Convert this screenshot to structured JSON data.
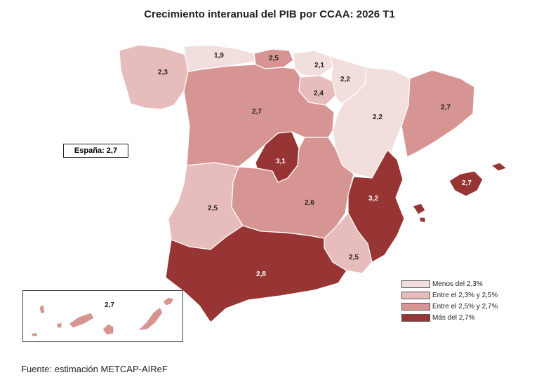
{
  "title": "Crecimiento interanual del PIB por CCAA: 2026 T1",
  "espana": "España: 2,7",
  "source": "Fuente: estimación METCAP-AIReF",
  "colors": {
    "lt23": "#f3dede",
    "r23_25": "#e7bcbc",
    "r25_27": "#d69592",
    "gt27": "#973434"
  },
  "legend": [
    {
      "label": "Menos del 2,3%",
      "color": "#f3dede"
    },
    {
      "label": "Entre el 2,3% y 2,5%",
      "color": "#e7bcbc"
    },
    {
      "label": "Entre el 2,5% y 2,7%",
      "color": "#d69592"
    },
    {
      "label": "Más del 2,7%",
      "color": "#973434"
    }
  ],
  "regions": {
    "galicia": "2,3",
    "asturias": "1,9",
    "cantabria": "2,5",
    "pais_vasco": "2,1",
    "navarra": "2,2",
    "rioja": "2,4",
    "aragon": "2,2",
    "cataluna": "2,7",
    "castilla_leon": "2,7",
    "madrid": "3,1",
    "castilla_mancha": "2,6",
    "valencia": "3,2",
    "baleares": "2,7",
    "extremadura": "2,5",
    "andalucia": "2,8",
    "murcia": "2,5",
    "canarias": "2,7"
  }
}
